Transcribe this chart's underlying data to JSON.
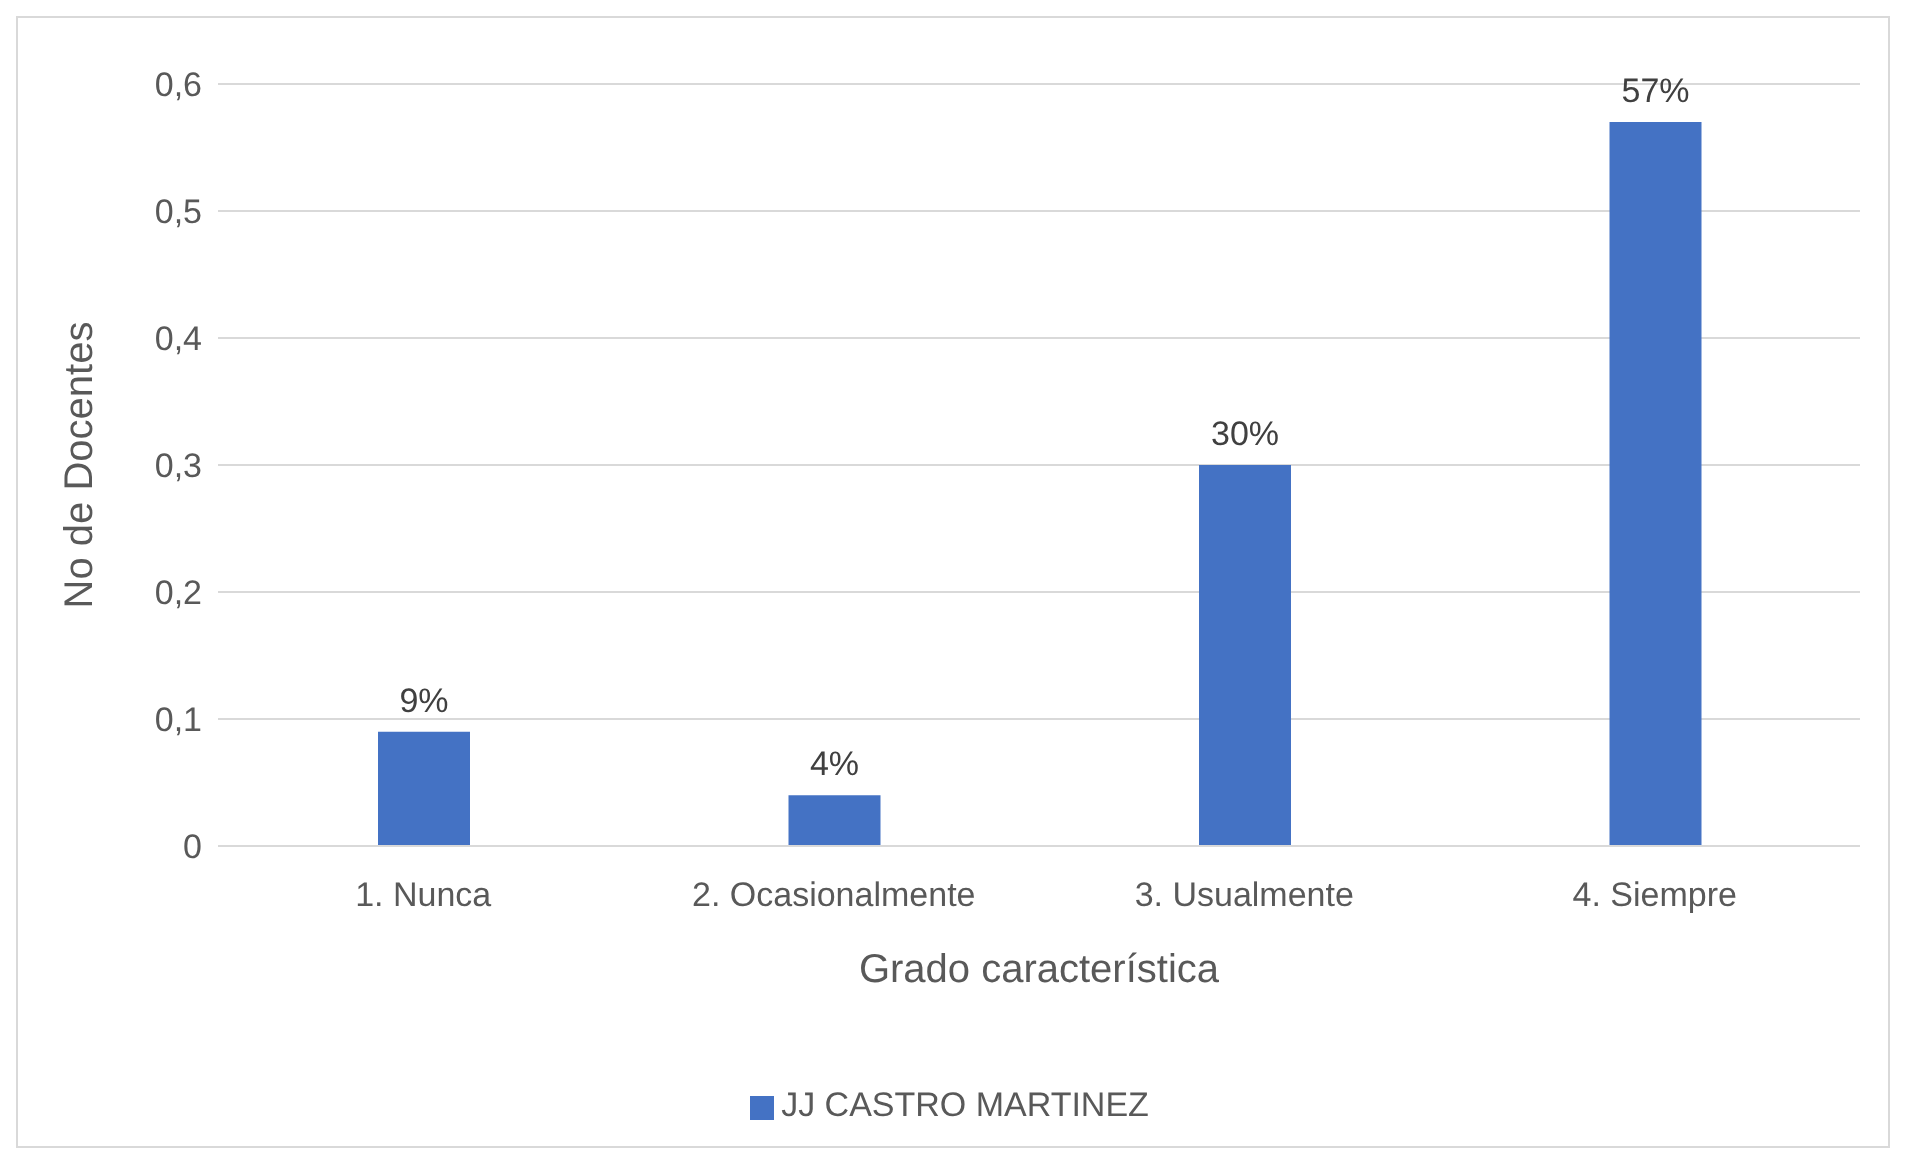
{
  "chart_data": {
    "type": "bar",
    "xlabel": "Grado característica",
    "ylabel": "No de Docentes",
    "categories": [
      "1. Nunca",
      "2. Ocasionalmente",
      "3. Usualmente",
      "4. Siempre"
    ],
    "series": [
      {
        "name": "JJ CASTRO MARTINEZ",
        "color": "#4472c4",
        "values": [
          0.09,
          0.04,
          0.3,
          0.57
        ],
        "value_labels": [
          "9%",
          "4%",
          "30%",
          "57%"
        ]
      }
    ],
    "ylim": [
      0,
      0.6
    ],
    "yticks": [
      0,
      {
        "value": 0.1,
        "label": "0,1"
      },
      {
        "value": 0.2,
        "label": "0,2"
      },
      {
        "value": 0.3,
        "label": "0,3"
      },
      {
        "value": 0.4,
        "label": "0,4"
      },
      {
        "value": 0.5,
        "label": "0,5"
      },
      {
        "value": 0.6,
        "label": "0,6"
      }
    ],
    "grid": "y",
    "legend": "bottom"
  }
}
